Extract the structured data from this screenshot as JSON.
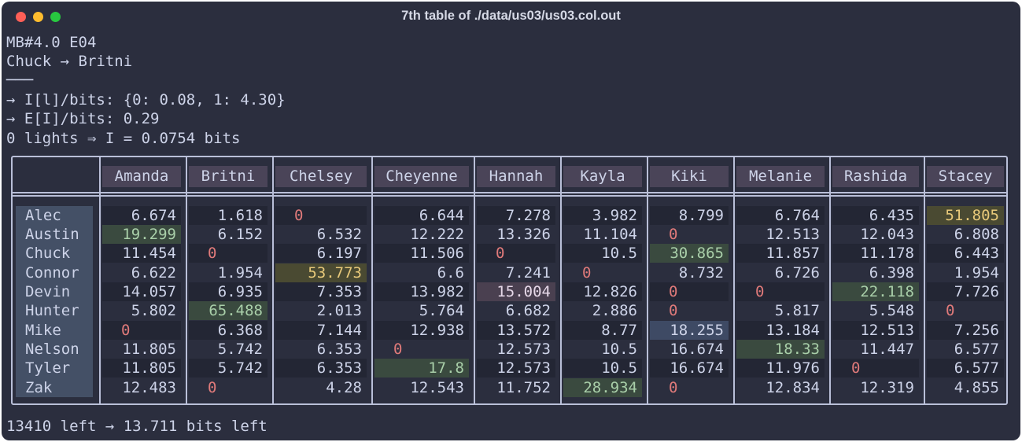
{
  "window": {
    "title": "7th table of ./data/us03/us03.col.out"
  },
  "header_lines": [
    "MB#4.0 E04",
    "Chuck → Britni",
    "───",
    "→ I[l]/bits: {0: 0.08, 1: 4.30}",
    "→ E[I]/bits: 0.29",
    "0 lights ⇒ I = 0.0754 bits"
  ],
  "footer": "13410 left → 13.711 bits left",
  "columns": [
    "Amanda",
    "Britni",
    "Chelsey",
    "Cheyenne",
    "Hannah",
    "Kayla",
    "Kiki",
    "Melanie",
    "Rashida",
    "Stacey"
  ],
  "rows": [
    {
      "name": "Alec",
      "values": [
        "6.674",
        "1.618",
        "0",
        "6.644",
        "7.278",
        "3.982",
        "8.799",
        "6.764",
        "6.435",
        "51.805"
      ]
    },
    {
      "name": "Austin",
      "values": [
        "19.299",
        "6.152",
        "6.532",
        "12.222",
        "13.326",
        "11.104",
        "0",
        "12.513",
        "12.043",
        "6.808"
      ]
    },
    {
      "name": "Chuck",
      "values": [
        "11.454",
        "0",
        "6.197",
        "11.506",
        "0",
        "10.5",
        "30.865",
        "11.857",
        "11.178",
        "6.443"
      ]
    },
    {
      "name": "Connor",
      "values": [
        "6.622",
        "1.954",
        "53.773",
        "6.6",
        "7.241",
        "0",
        "8.732",
        "6.726",
        "6.398",
        "1.954"
      ]
    },
    {
      "name": "Devin",
      "values": [
        "14.057",
        "6.935",
        "7.353",
        "13.982",
        "15.004",
        "12.826",
        "0",
        "0",
        "22.118",
        "7.726"
      ]
    },
    {
      "name": "Hunter",
      "values": [
        "5.802",
        "65.488",
        "2.013",
        "5.764",
        "6.682",
        "2.886",
        "0",
        "5.817",
        "5.548",
        "0"
      ]
    },
    {
      "name": "Mike",
      "values": [
        "0",
        "6.368",
        "7.144",
        "12.938",
        "13.572",
        "8.77",
        "18.255",
        "13.184",
        "12.513",
        "7.256"
      ]
    },
    {
      "name": "Nelson",
      "values": [
        "11.805",
        "5.742",
        "6.353",
        "0",
        "12.573",
        "10.5",
        "16.674",
        "18.33",
        "11.447",
        "6.577"
      ]
    },
    {
      "name": "Tyler",
      "values": [
        "11.805",
        "5.742",
        "6.353",
        "17.8",
        "12.573",
        "10.5",
        "16.674",
        "11.976",
        "0",
        "6.577"
      ]
    },
    {
      "name": "Zak",
      "values": [
        "12.483",
        "0",
        "4.28",
        "12.543",
        "11.752",
        "28.934",
        "0",
        "12.834",
        "12.319",
        "4.855"
      ]
    }
  ],
  "highlights": {
    "0-9": "olive",
    "1-0": "green",
    "2-6": "green",
    "3-2": "olive",
    "4-4": "pink",
    "4-8": "green",
    "5-1": "green",
    "6-6": "blue",
    "7-7": "green",
    "8-3": "green",
    "9-5": "green"
  },
  "colors": {
    "background": "#2b2e3e",
    "text": "#cdd3e8",
    "zero": "#e07a7a",
    "green_text": "#a9cfa9",
    "olive_text": "#e8c97a",
    "pink_text": "#e6d8e8"
  }
}
